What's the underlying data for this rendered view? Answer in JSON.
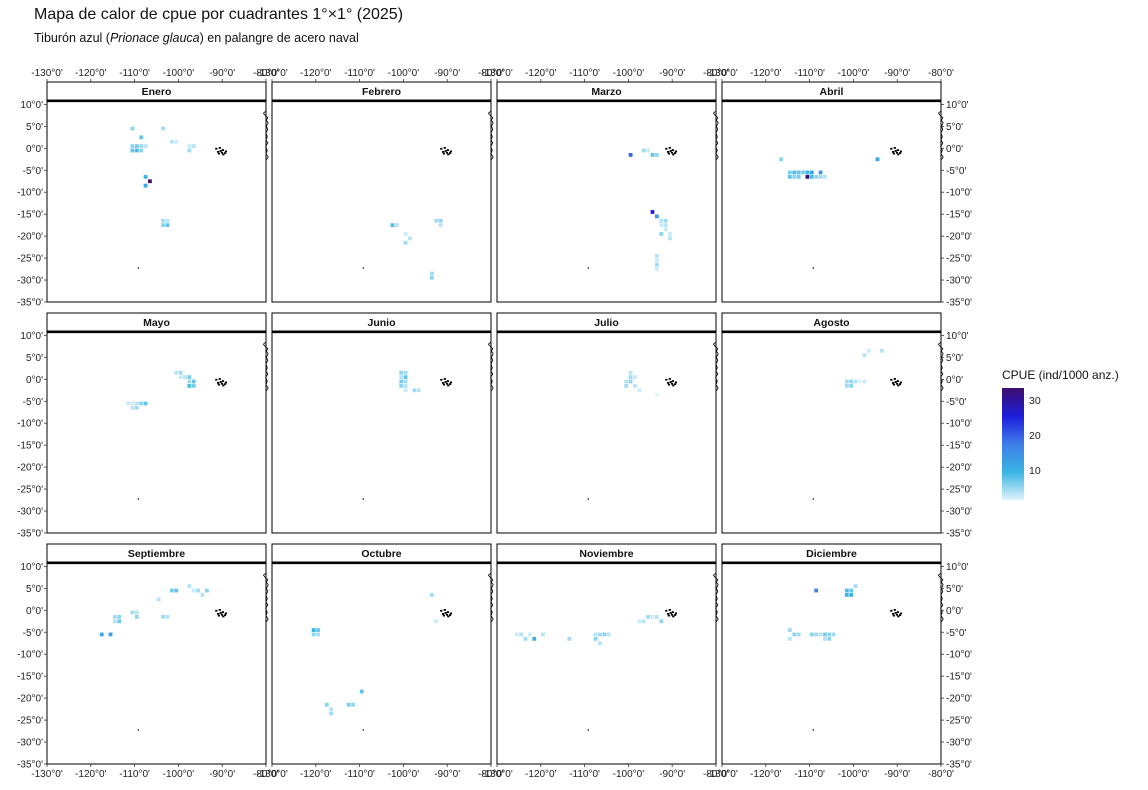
{
  "title": "Mapa de calor de cpue por cuadrantes 1°×1° (2025)",
  "subtitle": {
    "prefix": "Tiburón azul (",
    "species": "Prionace glauca",
    "suffix": ") en palangre de acero naval"
  },
  "colors": {
    "scale": [
      "#dff3fb",
      "#39b4e3",
      "#3f7de9",
      "#1d1ddb",
      "#3f0d6e"
    ],
    "coast": "#000000",
    "strip_line": "#000000"
  },
  "legend": {
    "title": "CPUE (ind/1000 anz.)",
    "breaks": [
      10,
      20,
      30
    ],
    "labels": [
      "10",
      "20",
      "30"
    ],
    "range": [
      2,
      34
    ]
  },
  "chart_data": {
    "type": "heatmap",
    "x_range": [
      -130,
      -80
    ],
    "y_range": [
      -35,
      11
    ],
    "x_ticks": [
      -130,
      -120,
      -110,
      -100,
      -90,
      -80
    ],
    "x_tick_labels": [
      "-130°0'",
      "-120°0'",
      "-110°0'",
      "-100°0'",
      "-90°0'",
      "-80°0'"
    ],
    "y_ticks": [
      10,
      5,
      0,
      -5,
      -10,
      -15,
      -20,
      -25,
      -30,
      -35
    ],
    "y_tick_labels": [
      "10°0'",
      "5°0'",
      "0°0'",
      "-5°0'",
      "-10°0'",
      "-15°0'",
      "-20°0'",
      "-25°0'",
      "-30°0'",
      "-35°0'"
    ],
    "cell_size_deg": 1,
    "panels": [
      {
        "month": "Enero",
        "cells": [
          [
            -111,
            4,
            6
          ],
          [
            -109,
            2,
            8
          ],
          [
            -104,
            4,
            5
          ],
          [
            -111,
            0,
            6
          ],
          [
            -110,
            0,
            7
          ],
          [
            -109,
            0,
            5
          ],
          [
            -108,
            0,
            4
          ],
          [
            -111,
            -1,
            8
          ],
          [
            -110,
            -1,
            9
          ],
          [
            -109,
            -1,
            6
          ],
          [
            -102,
            1,
            4
          ],
          [
            -101,
            1,
            3
          ],
          [
            -98,
            0,
            3
          ],
          [
            -97,
            0,
            4
          ],
          [
            -98,
            -1,
            5
          ],
          [
            -108,
            -7,
            10
          ],
          [
            -107,
            -8,
            34
          ],
          [
            -108,
            -9,
            12
          ],
          [
            -104,
            -17,
            5
          ],
          [
            -103,
            -17,
            4
          ],
          [
            -104,
            -18,
            6
          ],
          [
            -103,
            -18,
            8
          ]
        ]
      },
      {
        "month": "Febrero",
        "cells": [
          [
            -103,
            -18,
            9
          ],
          [
            -102,
            -18,
            4
          ],
          [
            -100,
            -20,
            3
          ],
          [
            -99,
            -21,
            4
          ],
          [
            -100,
            -22,
            5
          ],
          [
            -93,
            -17,
            5
          ],
          [
            -92,
            -17,
            6
          ],
          [
            -92,
            -18,
            4
          ],
          [
            -94,
            -29,
            5
          ],
          [
            -94,
            -30,
            6
          ]
        ]
      },
      {
        "month": "Marzo",
        "cells": [
          [
            -100,
            -2,
            20
          ],
          [
            -97,
            -1,
            5
          ],
          [
            -96,
            -1,
            3
          ],
          [
            -95,
            -2,
            8
          ],
          [
            -94,
            -2,
            6
          ],
          [
            -95,
            -15,
            26
          ],
          [
            -94,
            -16,
            14
          ],
          [
            -93,
            -17,
            4
          ],
          [
            -92,
            -17,
            5
          ],
          [
            -93,
            -18,
            3
          ],
          [
            -92,
            -18,
            4
          ],
          [
            -92,
            -19,
            3
          ],
          [
            -93,
            -20,
            6
          ],
          [
            -91,
            -20,
            3
          ],
          [
            -91,
            -21,
            4
          ],
          [
            -94,
            -25,
            4
          ],
          [
            -94,
            -26,
            3
          ],
          [
            -94,
            -27,
            5
          ],
          [
            -94,
            -28,
            3
          ]
        ]
      },
      {
        "month": "Abril",
        "cells": [
          [
            -117,
            -3,
            6
          ],
          [
            -115,
            -6,
            7
          ],
          [
            -114,
            -6,
            9
          ],
          [
            -113,
            -6,
            8
          ],
          [
            -112,
            -6,
            7
          ],
          [
            -111,
            -6,
            10
          ],
          [
            -110,
            -6,
            13
          ],
          [
            -108,
            -6,
            14
          ],
          [
            -115,
            -7,
            8
          ],
          [
            -114,
            -7,
            6
          ],
          [
            -113,
            -7,
            7
          ],
          [
            -111,
            -7,
            34
          ],
          [
            -110,
            -7,
            9
          ],
          [
            -109,
            -7,
            6
          ],
          [
            -108,
            -7,
            5
          ],
          [
            -107,
            -7,
            4
          ],
          [
            -95,
            -3,
            12
          ]
        ]
      },
      {
        "month": "Mayo",
        "cells": [
          [
            -101,
            1,
            4
          ],
          [
            -100,
            1,
            5
          ],
          [
            -100,
            0,
            3
          ],
          [
            -99,
            0,
            4
          ],
          [
            -98,
            0,
            7
          ],
          [
            -98,
            -1,
            5
          ],
          [
            -97,
            -1,
            8
          ],
          [
            -98,
            -2,
            9
          ],
          [
            -97,
            -2,
            7
          ],
          [
            -112,
            -6,
            3
          ],
          [
            -111,
            -6,
            3
          ],
          [
            -110,
            -6,
            4
          ],
          [
            -109,
            -6,
            6
          ],
          [
            -108,
            -6,
            8
          ],
          [
            -111,
            -7,
            4
          ],
          [
            -110,
            -7,
            5
          ]
        ]
      },
      {
        "month": "Junio",
        "cells": [
          [
            -101,
            1,
            6
          ],
          [
            -100,
            1,
            5
          ],
          [
            -101,
            0,
            4
          ],
          [
            -100,
            0,
            8
          ],
          [
            -101,
            -1,
            7
          ],
          [
            -100,
            -1,
            5
          ],
          [
            -101,
            -2,
            6
          ],
          [
            -100,
            -2,
            4
          ],
          [
            -98,
            -3,
            5
          ],
          [
            -97,
            -3,
            4
          ],
          [
            -100,
            -3,
            3
          ]
        ]
      },
      {
        "month": "Julio",
        "cells": [
          [
            -100,
            1,
            4
          ],
          [
            -100,
            0,
            5
          ],
          [
            -99,
            0,
            3
          ],
          [
            -101,
            -1,
            4
          ],
          [
            -100,
            -1,
            6
          ],
          [
            -101,
            -2,
            5
          ],
          [
            -99,
            -2,
            4
          ],
          [
            -98,
            -3,
            3
          ],
          [
            -94,
            -4,
            2
          ]
        ]
      },
      {
        "month": "Agosto",
        "cells": [
          [
            -98,
            5,
            4
          ],
          [
            -97,
            6,
            3
          ],
          [
            -94,
            6,
            4
          ],
          [
            -102,
            -1,
            5
          ],
          [
            -101,
            -1,
            6
          ],
          [
            -100,
            -1,
            4
          ],
          [
            -102,
            -2,
            5
          ],
          [
            -101,
            -2,
            6
          ],
          [
            -99,
            -1,
            2
          ],
          [
            -98,
            -1,
            3
          ]
        ]
      },
      {
        "month": "Septiembre",
        "cells": [
          [
            -118,
            -6,
            12
          ],
          [
            -116,
            -6,
            13
          ],
          [
            -115,
            -2,
            5
          ],
          [
            -114,
            -2,
            6
          ],
          [
            -115,
            -3,
            4
          ],
          [
            -114,
            -3,
            7
          ],
          [
            -111,
            -1,
            5
          ],
          [
            -110,
            -1,
            4
          ],
          [
            -110,
            -2,
            6
          ],
          [
            -105,
            2,
            4
          ],
          [
            -104,
            -2,
            5
          ],
          [
            -103,
            -2,
            4
          ],
          [
            -102,
            4,
            7
          ],
          [
            -101,
            4,
            8
          ],
          [
            -98,
            5,
            4
          ],
          [
            -97,
            4,
            3
          ],
          [
            -96,
            4,
            5
          ],
          [
            -95,
            3,
            4
          ],
          [
            -94,
            4,
            6
          ]
        ]
      },
      {
        "month": "Octubre",
        "cells": [
          [
            -121,
            -5,
            10
          ],
          [
            -120,
            -5,
            8
          ],
          [
            -121,
            -6,
            6
          ],
          [
            -120,
            -6,
            5
          ],
          [
            -118,
            -22,
            6
          ],
          [
            -117,
            -23,
            4
          ],
          [
            -117,
            -24,
            5
          ],
          [
            -113,
            -22,
            7
          ],
          [
            -112,
            -22,
            6
          ],
          [
            -110,
            -19,
            8
          ],
          [
            -94,
            3,
            5
          ],
          [
            -93,
            -3,
            3
          ]
        ]
      },
      {
        "month": "Noviembre",
        "cells": [
          [
            -126,
            -6,
            3
          ],
          [
            -125,
            -6,
            4
          ],
          [
            -124,
            -7,
            5
          ],
          [
            -123,
            -6,
            3
          ],
          [
            -122,
            -7,
            10
          ],
          [
            -120,
            -6,
            4
          ],
          [
            -114,
            -7,
            5
          ],
          [
            -108,
            -6,
            4
          ],
          [
            -107,
            -6,
            5
          ],
          [
            -108,
            -7,
            6
          ],
          [
            -107,
            -8,
            4
          ],
          [
            -106,
            -6,
            6
          ],
          [
            -105,
            -6,
            4
          ],
          [
            -98,
            -3,
            3
          ],
          [
            -97,
            -3,
            4
          ],
          [
            -96,
            -2,
            5
          ],
          [
            -95,
            -2,
            3
          ],
          [
            -94,
            -2,
            4
          ],
          [
            -93,
            -3,
            6
          ]
        ]
      },
      {
        "month": "Diciembre",
        "cells": [
          [
            -109,
            4,
            18
          ],
          [
            -102,
            4,
            9
          ],
          [
            -101,
            4,
            8
          ],
          [
            -102,
            3,
            10
          ],
          [
            -101,
            3,
            11
          ],
          [
            -100,
            5,
            5
          ],
          [
            -115,
            -5,
            5
          ],
          [
            -114,
            -6,
            6
          ],
          [
            -115,
            -7,
            4
          ],
          [
            -113,
            -6,
            5
          ],
          [
            -110,
            -6,
            6
          ],
          [
            -109,
            -6,
            5
          ],
          [
            -108,
            -6,
            4
          ],
          [
            -107,
            -6,
            7
          ],
          [
            -106,
            -6,
            6
          ],
          [
            -105,
            -6,
            5
          ],
          [
            -107,
            -7,
            4
          ],
          [
            -106,
            -7,
            6
          ]
        ]
      }
    ]
  }
}
